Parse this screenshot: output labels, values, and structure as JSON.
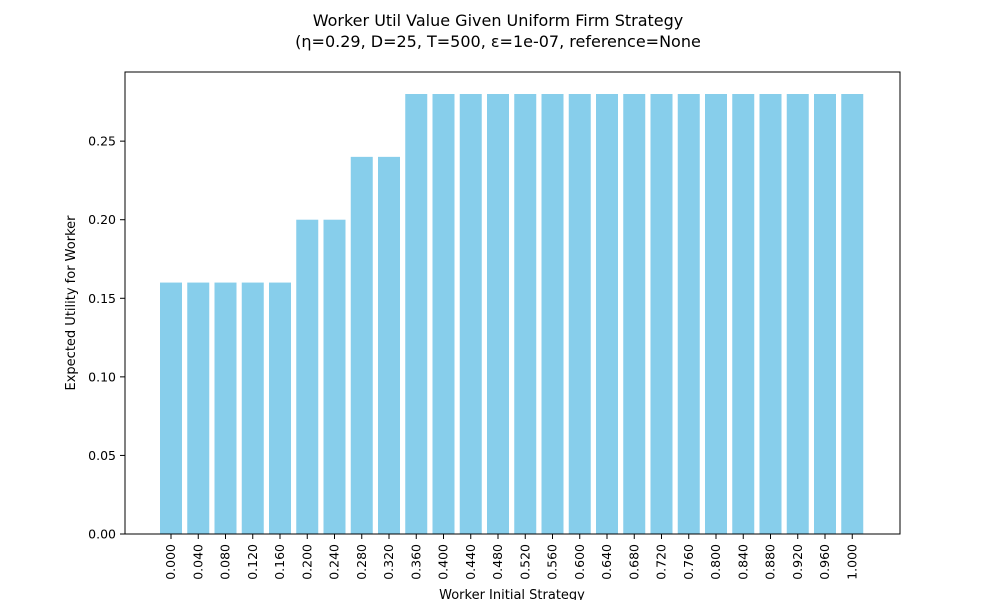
{
  "chart_data": {
    "type": "bar",
    "title": "Worker Util Value Given Uniform Firm Strategy",
    "subtitle": "(η=0.29, D=25, T=500, ε=1e-07, reference=None",
    "xlabel": "Worker Initial Strategy",
    "ylabel": "Expected Utility for Worker",
    "categories": [
      "0.000",
      "0.040",
      "0.080",
      "0.120",
      "0.160",
      "0.200",
      "0.240",
      "0.280",
      "0.320",
      "0.360",
      "0.400",
      "0.440",
      "0.480",
      "0.520",
      "0.560",
      "0.600",
      "0.640",
      "0.680",
      "0.720",
      "0.760",
      "0.800",
      "0.840",
      "0.880",
      "0.920",
      "0.960",
      "1.000"
    ],
    "values": [
      0.16,
      0.16,
      0.16,
      0.16,
      0.16,
      0.2,
      0.2,
      0.24,
      0.24,
      0.28,
      0.28,
      0.28,
      0.28,
      0.28,
      0.28,
      0.28,
      0.28,
      0.28,
      0.28,
      0.28,
      0.28,
      0.28,
      0.28,
      0.28,
      0.28,
      0.28
    ],
    "ylim": [
      0,
      0.294
    ],
    "yticks": [
      0.0,
      0.05,
      0.1,
      0.15,
      0.2,
      0.25
    ],
    "ytick_labels": [
      "0.00",
      "0.05",
      "0.10",
      "0.15",
      "0.20",
      "0.25"
    ],
    "grid": false,
    "bar_color": "#87CEEB"
  }
}
